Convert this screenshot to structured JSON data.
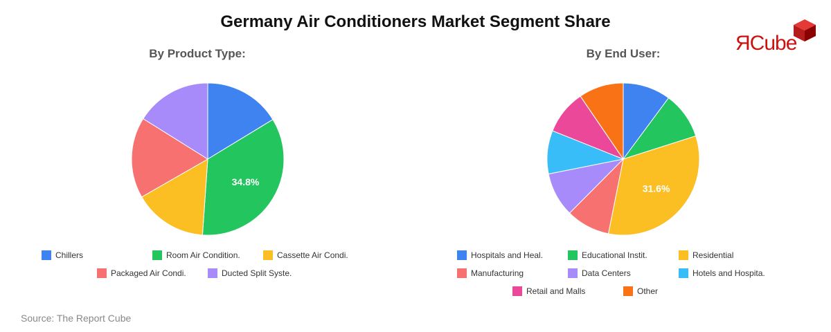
{
  "title": "Germany Air Conditioners Market Segment Share",
  "logo": {
    "text": "ЯCube",
    "color": "#cc1111"
  },
  "source": "Source: The Report Cube",
  "chart_data": [
    {
      "type": "pie",
      "title": "By Product Type:",
      "categories": [
        "Chillers",
        "Room Air Condition.",
        "Cassette Air Condi.",
        "Packaged Air Condi.",
        "Ducted Split Syste."
      ],
      "values": [
        16.3,
        34.8,
        15.6,
        17.2,
        16.1
      ],
      "colors": [
        "#3f83f1",
        "#22c55e",
        "#fbbf24",
        "#f87171",
        "#a78bfa"
      ],
      "labels": [
        "",
        "34.8%",
        "",
        "",
        ""
      ]
    },
    {
      "type": "pie",
      "title": "By End User:",
      "categories": [
        "Hospitals and Heal.",
        "Educational Instit.",
        "Residential",
        "Manufacturing",
        "Data Centers",
        "Hotels and Hospita.",
        "Retail and Malls",
        "Other"
      ],
      "values": [
        9.7,
        9.5,
        31.6,
        8.9,
        9.0,
        8.8,
        9.0,
        9.1
      ],
      "colors": [
        "#3f83f1",
        "#22c55e",
        "#fbbf24",
        "#f87171",
        "#a78bfa",
        "#38bdf8",
        "#ec4899",
        "#f97316"
      ],
      "labels": [
        "",
        "",
        "31.6%",
        "",
        "",
        "",
        "",
        ""
      ]
    }
  ]
}
